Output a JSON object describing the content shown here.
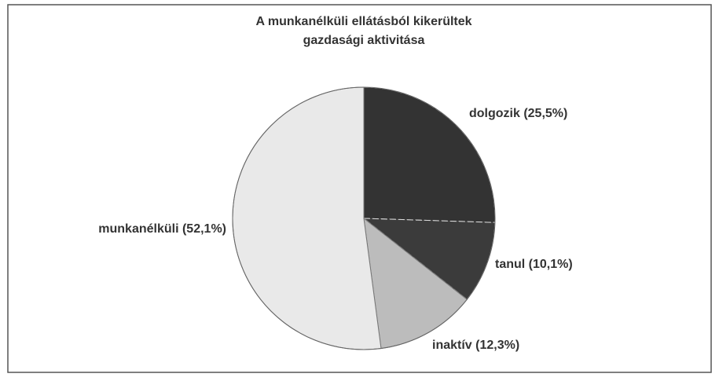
{
  "chart_data": {
    "type": "pie",
    "title": [
      "A munkanélküli ellátásból kikerültek",
      "gazdasági aktivitása"
    ],
    "categories": [
      "dolgozik (25,5%)",
      "tanul (10,1%)",
      "inaktív (12,3%)",
      "munkanélküli (52,1%)"
    ],
    "values": [
      25.5,
      10.1,
      12.3,
      52.1
    ],
    "colors": [
      "#333333",
      "#3b3b3b",
      "#bcbcbc",
      "#e9e9e9"
    ]
  }
}
